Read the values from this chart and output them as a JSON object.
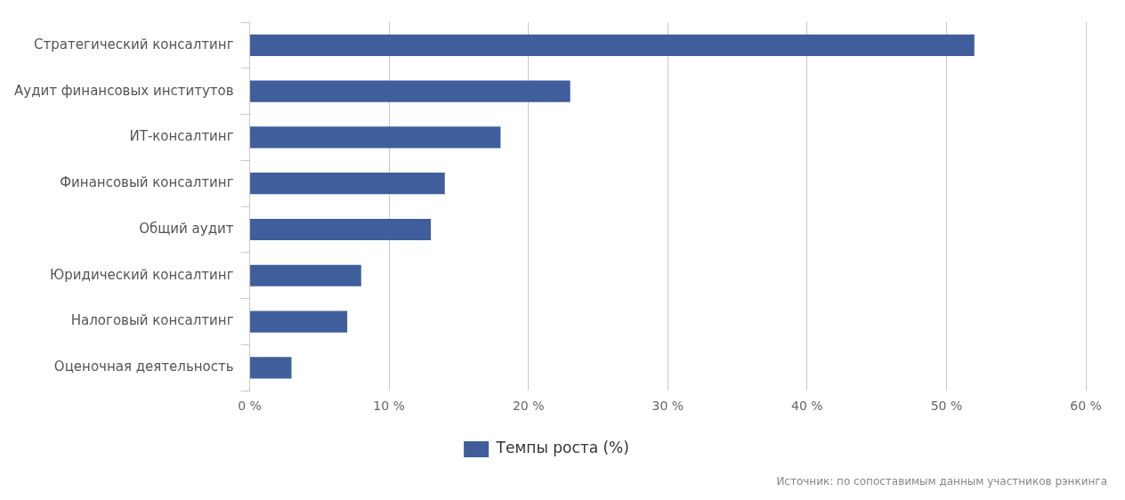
{
  "chart_data": {
    "type": "bar",
    "orientation": "horizontal",
    "categories": [
      "Стратегический консалтинг",
      "Аудит финансовых институтов",
      "ИТ-консалтинг",
      "Финансовый консалтинг",
      "Общий аудит",
      "Юридический консалтинг",
      "Налоговый консалтинг",
      "Оценочная деятельность"
    ],
    "series": [
      {
        "name": "Темпы роста (%)",
        "color": "#3f5e9b",
        "values": [
          52,
          23,
          18,
          14,
          13,
          8,
          7,
          3
        ]
      }
    ],
    "xlim": [
      0,
      60
    ],
    "xticks": [
      {
        "value": 0,
        "label": "0 %"
      },
      {
        "value": 10,
        "label": "10 %"
      },
      {
        "value": 20,
        "label": "20 %"
      },
      {
        "value": 30,
        "label": "30 %"
      },
      {
        "value": 40,
        "label": "40 %"
      },
      {
        "value": 50,
        "label": "50 %"
      },
      {
        "value": 60,
        "label": "60 %"
      }
    ],
    "grid": "x",
    "legend": "bottom",
    "annotations": [
      "Источник: по сопоставимым данным участников рэнкинга"
    ]
  }
}
